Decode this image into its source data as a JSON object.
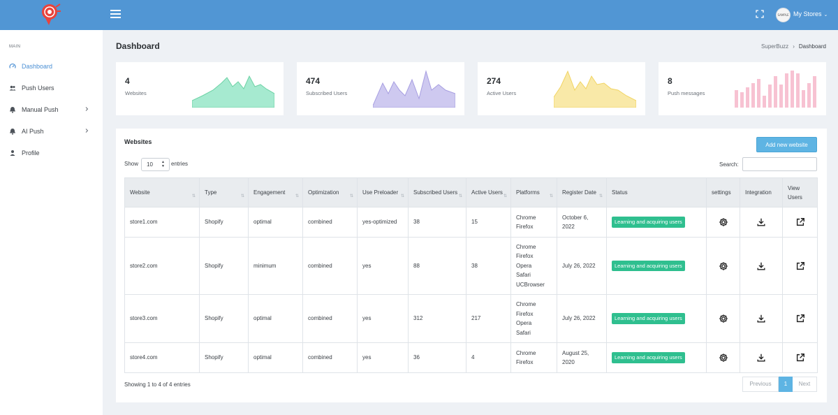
{
  "header": {
    "store_menu": "My Stores",
    "avatar_text": "SAMPLE"
  },
  "sidebar": {
    "section": "MAIN",
    "items": [
      {
        "label": "Dashboard",
        "icon": "dashboard-icon",
        "active": true
      },
      {
        "label": "Push Users",
        "icon": "users-icon"
      },
      {
        "label": "Manual Push",
        "icon": "bell-icon",
        "has_submenu": true
      },
      {
        "label": "AI Push",
        "icon": "bell-icon",
        "has_submenu": true
      },
      {
        "label": "Profile",
        "icon": "user-icon"
      }
    ]
  },
  "page": {
    "title": "Dashboard",
    "breadcrumb": [
      "SuperBuzz",
      "Dashboard"
    ]
  },
  "stats": [
    {
      "value": "4",
      "label": "Websites",
      "color": "#9be4c4",
      "line": "#5fcf9d",
      "chart": "area"
    },
    {
      "value": "474",
      "label": "Subscribed Users",
      "color": "#c9c4ee",
      "line": "#9f95df",
      "chart": "area"
    },
    {
      "value": "274",
      "label": "Active Users",
      "color": "#f8e7a1",
      "line": "#f2d25d",
      "chart": "area"
    },
    {
      "value": "8",
      "label": "Push messages",
      "color": "#f6bfd0",
      "chart": "bars"
    }
  ],
  "websites": {
    "title": "Websites",
    "add_button": "Add new website",
    "show_label": "Show",
    "show_value": "10",
    "entries_label": "entries",
    "search_label": "Search:",
    "search_value": "",
    "columns": [
      "Website",
      "Type",
      "Engagement",
      "Optimization",
      "Use Preloader",
      "Subscribed Users",
      "Active Users",
      "Platforms",
      "Register Date",
      "Status",
      "settings",
      "Integration",
      "View Users"
    ],
    "rows": [
      {
        "website": "store1.com",
        "type": "Shopify",
        "engagement": "optimal",
        "optimization": "combined",
        "preloader": "yes-optimized",
        "subscribed": "38",
        "active": "15",
        "platforms": "Chrome\nFirefox",
        "date": "October 6, 2022",
        "status": "Learning and acquiring users"
      },
      {
        "website": "store2.com",
        "type": "Shopify",
        "engagement": "minimum",
        "optimization": "combined",
        "preloader": "yes",
        "subscribed": "88",
        "active": "38",
        "platforms": "Chrome\nFirefox\nOpera\nSafari\nUCBrowser",
        "date": "July 26, 2022",
        "status": "Learning and acquiring users"
      },
      {
        "website": "store3.com",
        "type": "Shopify",
        "engagement": "optimal",
        "optimization": "combined",
        "preloader": "yes",
        "subscribed": "312",
        "active": "217",
        "platforms": "Chrome\nFirefox\nOpera\nSafari",
        "date": "July 26, 2022",
        "status": "Learning and acquiring users"
      },
      {
        "website": "store4.com",
        "type": "Shopify",
        "engagement": "optimal",
        "optimization": "combined",
        "preloader": "yes",
        "subscribed": "36",
        "active": "4",
        "platforms": "Chrome\nFirefox",
        "date": "August 25, 2020",
        "status": "Learning and acquiring users"
      }
    ],
    "info": "Showing 1 to 4 of 4 entries",
    "pagination": {
      "previous": "Previous",
      "page": "1",
      "next": "Next"
    }
  }
}
